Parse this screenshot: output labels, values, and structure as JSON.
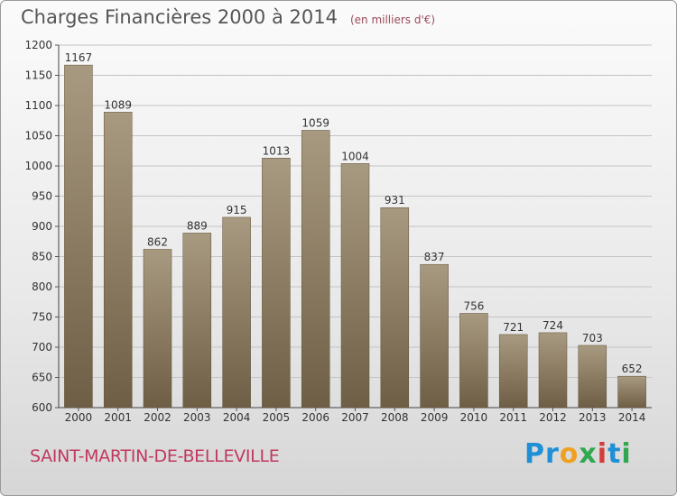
{
  "header": {
    "title": "Charges Financières 2000 à 2014",
    "subtitle": "(en milliers d'€)"
  },
  "footer": {
    "commune": "SAINT-MARTIN-DE-BELLEVILLE",
    "logo_letters": [
      "P",
      "r",
      "o",
      "x",
      "i",
      "t",
      "i"
    ],
    "logo_colors": [
      "#1f8fd6",
      "#1f8fd6",
      "#f0a020",
      "#2fa84f",
      "#d63a3a",
      "#1f8fd6",
      "#2fa84f"
    ]
  },
  "chart_data": {
    "type": "bar",
    "title": "Charges Financières 2000 à 2014",
    "subtitle": "(en milliers d'€)",
    "categories": [
      "2000",
      "2001",
      "2002",
      "2003",
      "2004",
      "2005",
      "2006",
      "2007",
      "2008",
      "2009",
      "2010",
      "2011",
      "2012",
      "2013",
      "2014"
    ],
    "values": [
      1167,
      1089,
      862,
      889,
      915,
      1013,
      1059,
      1004,
      931,
      837,
      756,
      721,
      724,
      703,
      652
    ],
    "ylim": [
      600,
      1200
    ],
    "yticks": [
      600,
      650,
      700,
      750,
      800,
      850,
      900,
      950,
      1000,
      1050,
      1100,
      1150,
      1200
    ],
    "grid": true,
    "bar_color_top": "#a89a80",
    "bar_color_bottom": "#6e5e45"
  }
}
